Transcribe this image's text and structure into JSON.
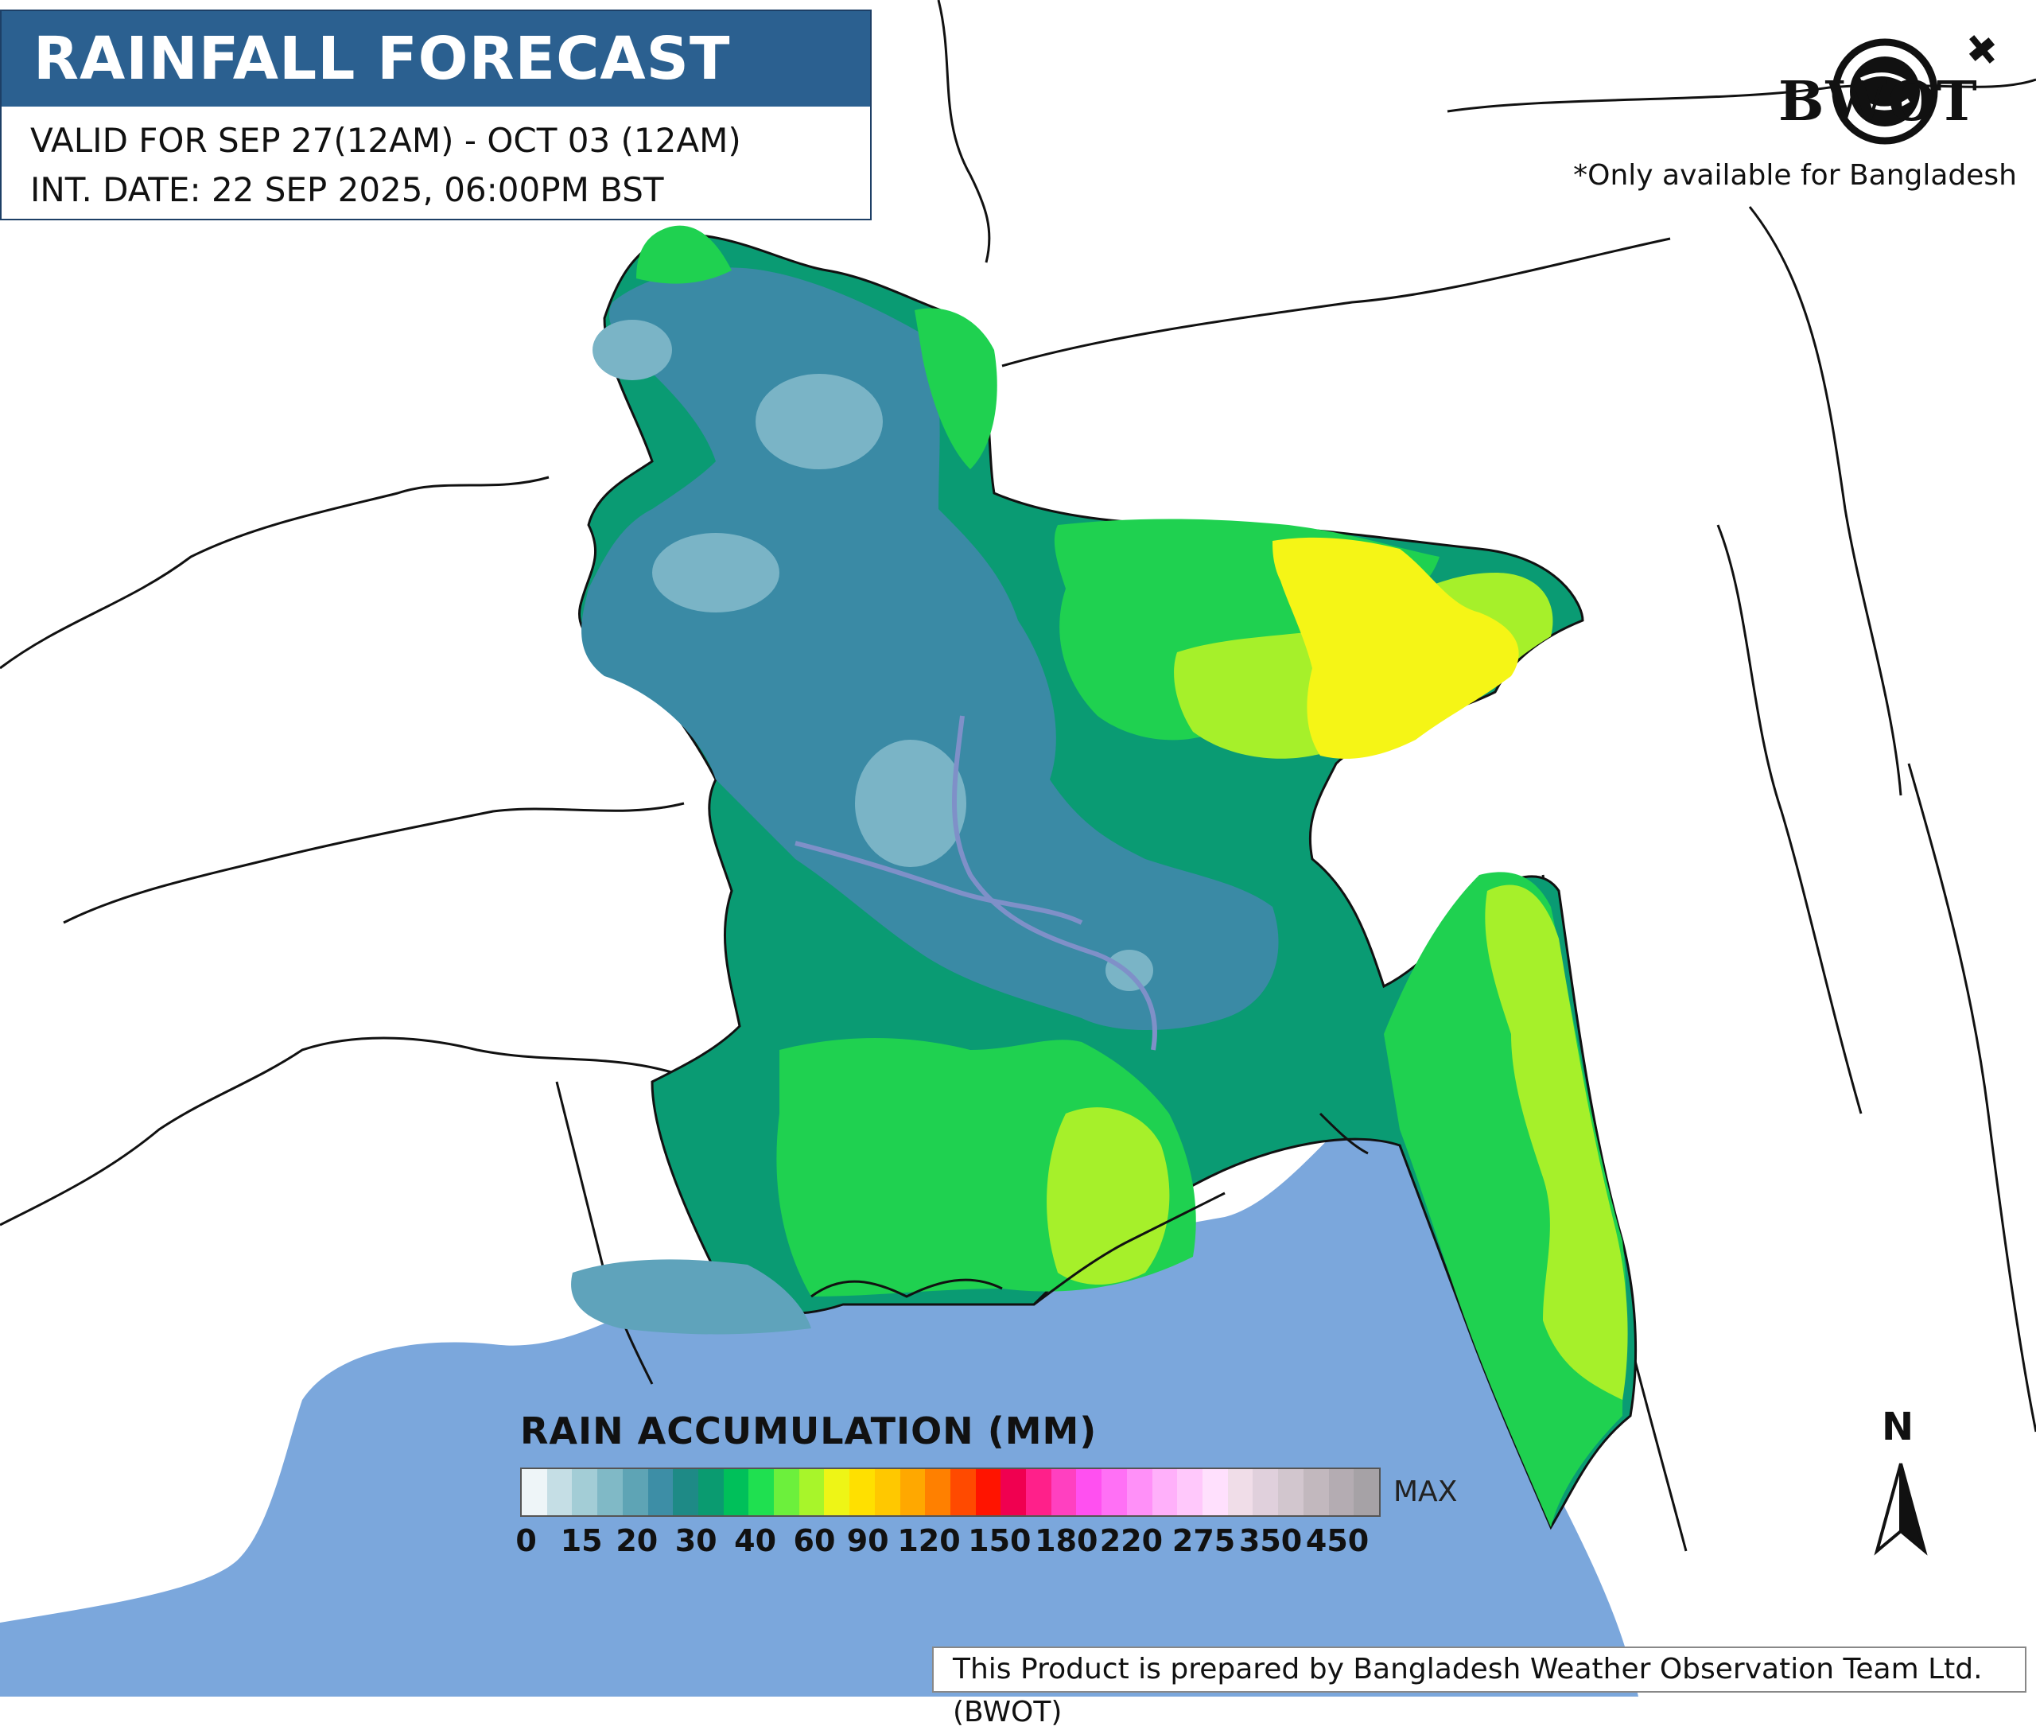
{
  "header": {
    "title": "RAINFALL FORECAST",
    "valid_for": "VALID FOR SEP 27(12AM) - OCT 03 (12AM)",
    "init_date": "INT. DATE: 22 SEP 2025, 06:00PM BST"
  },
  "logo": {
    "text": "BWOT"
  },
  "note": "*Only available for Bangladesh",
  "legend": {
    "title": "RAIN ACCUMULATION (MM)",
    "max_label": "MAX",
    "tick_labels": [
      "0",
      "15",
      "20",
      "30",
      "40",
      "60",
      "90",
      "120",
      "150",
      "180",
      "220",
      "275",
      "350",
      "450"
    ],
    "colors": [
      "#eef5f8",
      "#c5dee5",
      "#a3cdd6",
      "#80b9c6",
      "#5ea4b5",
      "#3d8ea6",
      "#1e8a86",
      "#0a9b70",
      "#00c05a",
      "#1fe050",
      "#6cf03c",
      "#a8f52a",
      "#eef516",
      "#ffe000",
      "#ffc800",
      "#ffa800",
      "#ff8000",
      "#ff4a00",
      "#ff1400",
      "#f00050",
      "#ff208a",
      "#ff40c0",
      "#ff50f0",
      "#ff70f5",
      "#ff90f8",
      "#ffb0fa",
      "#ffc8fb",
      "#ffe0fd",
      "#f0dde8",
      "#e0d0dc",
      "#d2c6ce",
      "#c2b8be",
      "#b4acb2",
      "#a6a2a6"
    ]
  },
  "north_label": "N",
  "footer": "This Product is prepared by Bangladesh Weather Observation Team Ltd. (BWOT)"
}
